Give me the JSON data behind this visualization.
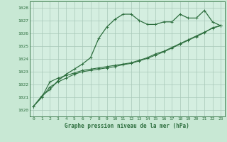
{
  "title": "Graphe pression niveau de la mer (hPa)",
  "background_color": "#c8e8d4",
  "plot_bg_color": "#d4eee0",
  "grid_color": "#a8c8b8",
  "line_color": "#2d6e3e",
  "xlim": [
    -0.5,
    23.5
  ],
  "ylim": [
    1019.5,
    1028.5
  ],
  "yticks": [
    1020,
    1021,
    1022,
    1023,
    1024,
    1025,
    1026,
    1027,
    1028
  ],
  "xticks": [
    0,
    1,
    2,
    3,
    4,
    5,
    6,
    7,
    8,
    9,
    10,
    11,
    12,
    13,
    14,
    15,
    16,
    17,
    18,
    19,
    20,
    21,
    22,
    23
  ],
  "series1": [
    1020.3,
    1021.1,
    1021.6,
    1022.3,
    1022.8,
    1023.2,
    1023.6,
    1024.1,
    1025.6,
    1026.5,
    1027.1,
    1027.5,
    1027.5,
    1027.0,
    1026.7,
    1026.7,
    1026.9,
    1026.9,
    1027.5,
    1027.2,
    1027.2,
    1027.8,
    1026.9,
    1026.6
  ],
  "series2": [
    1020.3,
    1021.0,
    1022.2,
    1022.5,
    1022.7,
    1022.9,
    1023.1,
    1023.2,
    1023.3,
    1023.4,
    1023.5,
    1023.6,
    1023.7,
    1023.9,
    1024.1,
    1024.4,
    1024.6,
    1024.9,
    1025.2,
    1025.5,
    1025.8,
    1026.1,
    1026.4,
    1026.6
  ],
  "series3": [
    1020.3,
    1021.0,
    1021.8,
    1022.2,
    1022.5,
    1022.8,
    1023.0,
    1023.1,
    1023.2,
    1023.3,
    1023.4,
    1023.55,
    1023.65,
    1023.85,
    1024.05,
    1024.3,
    1024.55,
    1024.85,
    1025.15,
    1025.45,
    1025.75,
    1026.05,
    1026.45,
    1026.6
  ]
}
